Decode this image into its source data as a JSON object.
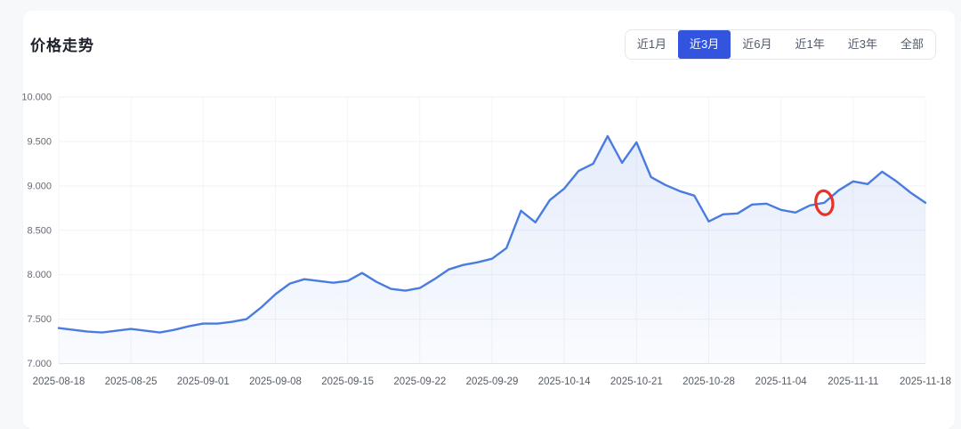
{
  "card": {
    "title": "价格走势"
  },
  "tabs": {
    "active_color": "#3254de",
    "items": [
      {
        "name": "tab-1month",
        "label": "近1月",
        "active": false
      },
      {
        "name": "tab-3month",
        "label": "近3月",
        "active": true
      },
      {
        "name": "tab-6month",
        "label": "近6月",
        "active": false
      },
      {
        "name": "tab-1year",
        "label": "近1年",
        "active": false
      },
      {
        "name": "tab-3year",
        "label": "近3年",
        "active": false
      },
      {
        "name": "tab-all",
        "label": "全部",
        "active": false
      }
    ]
  },
  "chart_data": {
    "type": "line",
    "title": "价格走势",
    "xlabel": "",
    "ylabel": "",
    "ylim": [
      7.0,
      10.0
    ],
    "grid": true,
    "legend": "none",
    "line_color": "#4a7ce0",
    "area_color_top": "rgba(74,124,224,0.14)",
    "area_color_bottom": "rgba(74,124,224,0.03)",
    "grid_color": "#f0f2f5",
    "axis_line_color": "#e2e4e9",
    "y_tick_labels": [
      "7.000",
      "7.500",
      "8.000",
      "8.500",
      "9.000",
      "9.500",
      "10.000"
    ],
    "y_tick_values": [
      7.0,
      7.5,
      8.0,
      8.5,
      9.0,
      9.5,
      10.0
    ],
    "x_tick_labels": [
      "2025-08-18",
      "2025-08-25",
      "2025-09-01",
      "2025-09-08",
      "2025-09-15",
      "2025-09-22",
      "2025-09-29",
      "2025-10-14",
      "2025-10-21",
      "2025-10-28",
      "2025-11-04",
      "2025-11-11",
      "2025-11-18"
    ],
    "x_tick_every": 5,
    "x": [
      "2025-08-18",
      "2025-08-19",
      "2025-08-20",
      "2025-08-21",
      "2025-08-22",
      "2025-08-25",
      "2025-08-26",
      "2025-08-27",
      "2025-08-28",
      "2025-08-29",
      "2025-09-01",
      "2025-09-02",
      "2025-09-03",
      "2025-09-04",
      "2025-09-05",
      "2025-09-08",
      "2025-09-09",
      "2025-09-10",
      "2025-09-11",
      "2025-09-12",
      "2025-09-15",
      "2025-09-16",
      "2025-09-17",
      "2025-09-18",
      "2025-09-19",
      "2025-09-22",
      "2025-09-23",
      "2025-09-24",
      "2025-09-25",
      "2025-09-26",
      "2025-09-29",
      "2025-09-30",
      "2025-10-09",
      "2025-10-10",
      "2025-10-13",
      "2025-10-14",
      "2025-10-15",
      "2025-10-16",
      "2025-10-17",
      "2025-10-20",
      "2025-10-21",
      "2025-10-22",
      "2025-10-23",
      "2025-10-24",
      "2025-10-27",
      "2025-10-28",
      "2025-10-29",
      "2025-10-30",
      "2025-10-31",
      "2025-11-03",
      "2025-11-04",
      "2025-11-05",
      "2025-11-06",
      "2025-11-07",
      "2025-11-10",
      "2025-11-11",
      "2025-11-12",
      "2025-11-13",
      "2025-11-14",
      "2025-11-17",
      "2025-11-18"
    ],
    "values": [
      7.4,
      7.38,
      7.36,
      7.35,
      7.37,
      7.39,
      7.37,
      7.35,
      7.38,
      7.42,
      7.45,
      7.45,
      7.47,
      7.5,
      7.63,
      7.78,
      7.9,
      7.95,
      7.93,
      7.91,
      7.93,
      8.02,
      7.92,
      7.84,
      7.82,
      7.85,
      7.95,
      8.06,
      8.11,
      8.14,
      8.18,
      8.3,
      8.72,
      8.59,
      8.84,
      8.97,
      9.17,
      9.25,
      9.56,
      9.26,
      9.49,
      9.1,
      9.01,
      8.94,
      8.89,
      8.6,
      8.68,
      8.69,
      8.79,
      8.8,
      8.73,
      8.7,
      8.78,
      8.81,
      8.95,
      9.05,
      9.02,
      9.16,
      9.05,
      8.92,
      8.81
    ],
    "annotation": {
      "shape": "ellipse",
      "date": "2025-11-07",
      "index": 53,
      "value": 8.81,
      "color": "#e8312a"
    }
  }
}
